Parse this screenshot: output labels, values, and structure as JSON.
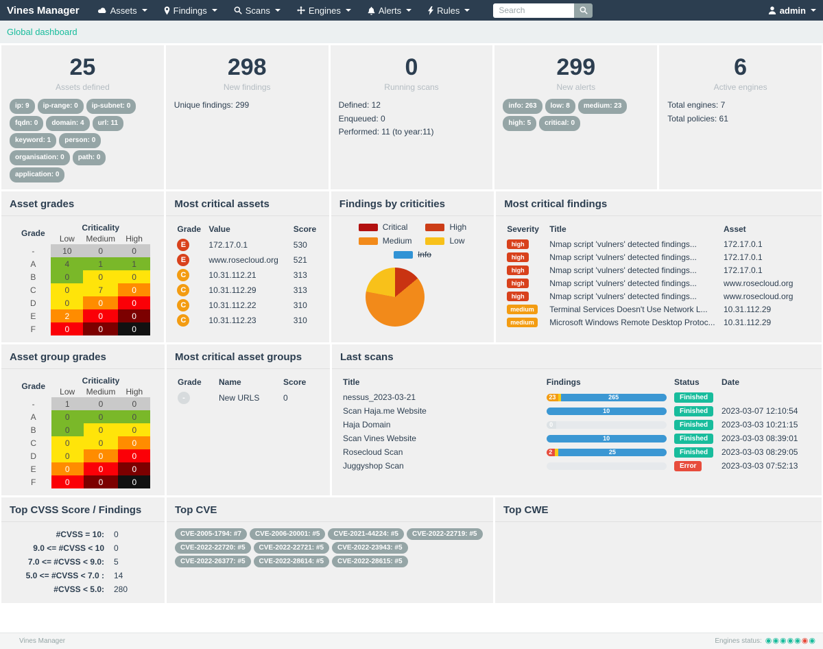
{
  "palette": {
    "navbar_bg": "#2c3e50",
    "teal": "#18bc9c",
    "blue": "#3b97d3",
    "red": "#e74c3c",
    "high": "#d8411c",
    "orange": "#f39c12",
    "yellow": "#f7ca18",
    "gray_badge": "#95a5a6",
    "muted": "#b4bcc2",
    "track": "#dde2e5",
    "light_gray": "#d7dbdd",
    "heat_gray": "#c9c9c9",
    "heat_green": "#7ab829",
    "heat_yellow": "#ffe40a",
    "heat_orange": "#ff8c00",
    "heat_red": "#fb0007",
    "heat_darkred": "#7c0000",
    "heat_black": "#111111",
    "panel_bg": "#f0f0f0",
    "breadcrumb_bg": "#ecf0f1"
  },
  "dark_text_colors": [
    "heat_gray",
    "heat_green",
    "heat_yellow",
    "track"
  ],
  "navbar": {
    "brand": "Vines Manager",
    "menus": [
      {
        "label": "Assets",
        "icon": "cloud-icon"
      },
      {
        "label": "Findings",
        "icon": "map-marker-icon"
      },
      {
        "label": "Scans",
        "icon": "search-icon"
      },
      {
        "label": "Engines",
        "icon": "arrows-icon"
      },
      {
        "label": "Alerts",
        "icon": "bell-icon"
      },
      {
        "label": "Rules",
        "icon": "bolt-icon"
      }
    ],
    "search_placeholder": "Search",
    "user": "admin"
  },
  "breadcrumb": {
    "label": "Global dashboard"
  },
  "stat_cards": [
    {
      "number": "25",
      "label": "Assets defined",
      "badges": [
        "ip: 9",
        "ip-range: 0",
        "ip-subnet: 0",
        "fqdn: 0",
        "domain: 4",
        "url: 11",
        "keyword: 1",
        "person: 0",
        "organisation: 0",
        "path: 0",
        "application: 0"
      ]
    },
    {
      "number": "298",
      "label": "New findings",
      "lines": [
        "Unique findings: 299"
      ]
    },
    {
      "number": "0",
      "label": "Running scans",
      "lines": [
        "Defined: 12",
        "Enqueued: 0",
        "Performed: 11 (to year:11)"
      ]
    },
    {
      "number": "299",
      "label": "New alerts",
      "badges": [
        "info: 263",
        "low: 8",
        "medium: 23",
        "high: 5",
        "critical: 0"
      ]
    },
    {
      "number": "6",
      "label": "Active engines",
      "lines": [
        "Total engines: 7",
        "Total policies: 61"
      ]
    }
  ],
  "panels": {
    "asset_grades": {
      "title": "Asset grades",
      "grade_header": "Grade",
      "crit_header": "Criticality",
      "cols": [
        "Low",
        "Medium",
        "High"
      ],
      "rows": [
        {
          "grade": "-",
          "cells": [
            {
              "v": "10",
              "c": "heat_gray"
            },
            {
              "v": "0",
              "c": "heat_gray"
            },
            {
              "v": "0",
              "c": "heat_gray"
            }
          ]
        },
        {
          "grade": "A",
          "cells": [
            {
              "v": "4",
              "c": "heat_green"
            },
            {
              "v": "1",
              "c": "heat_green"
            },
            {
              "v": "1",
              "c": "heat_green"
            }
          ]
        },
        {
          "grade": "B",
          "cells": [
            {
              "v": "0",
              "c": "heat_green"
            },
            {
              "v": "0",
              "c": "heat_yellow"
            },
            {
              "v": "0",
              "c": "heat_yellow"
            }
          ]
        },
        {
          "grade": "C",
          "cells": [
            {
              "v": "0",
              "c": "heat_yellow"
            },
            {
              "v": "7",
              "c": "heat_yellow"
            },
            {
              "v": "0",
              "c": "heat_orange"
            }
          ]
        },
        {
          "grade": "D",
          "cells": [
            {
              "v": "0",
              "c": "heat_yellow"
            },
            {
              "v": "0",
              "c": "heat_orange"
            },
            {
              "v": "0",
              "c": "heat_red"
            }
          ]
        },
        {
          "grade": "E",
          "cells": [
            {
              "v": "2",
              "c": "heat_orange"
            },
            {
              "v": "0",
              "c": "heat_red"
            },
            {
              "v": "0",
              "c": "heat_darkred"
            }
          ]
        },
        {
          "grade": "F",
          "cells": [
            {
              "v": "0",
              "c": "heat_red"
            },
            {
              "v": "0",
              "c": "heat_darkred"
            },
            {
              "v": "0",
              "c": "heat_black"
            }
          ]
        }
      ]
    },
    "most_critical_assets": {
      "title": "Most critical assets",
      "headers": [
        "Grade",
        "Value",
        "Score"
      ],
      "rows": [
        {
          "grade": "E",
          "color": "high",
          "value": "172.17.0.1",
          "score": "530"
        },
        {
          "grade": "E",
          "color": "high",
          "value": "www.rosecloud.org",
          "score": "521"
        },
        {
          "grade": "C",
          "color": "orange",
          "value": "10.31.112.21",
          "score": "313"
        },
        {
          "grade": "C",
          "color": "orange",
          "value": "10.31.112.29",
          "score": "313"
        },
        {
          "grade": "C",
          "color": "orange",
          "value": "10.31.112.22",
          "score": "310"
        },
        {
          "grade": "C",
          "color": "orange",
          "value": "10.31.112.23",
          "score": "310"
        }
      ]
    },
    "findings_by_criticities": {
      "title": "Findings by criticities"
    },
    "most_critical_findings": {
      "title": "Most critical findings",
      "headers": [
        "Severity",
        "Title",
        "Asset"
      ],
      "rows": [
        {
          "severity": "high",
          "color": "high",
          "title": "Nmap script 'vulners' detected findings...",
          "asset": "172.17.0.1"
        },
        {
          "severity": "high",
          "color": "high",
          "title": "Nmap script 'vulners' detected findings...",
          "asset": "172.17.0.1"
        },
        {
          "severity": "high",
          "color": "high",
          "title": "Nmap script 'vulners' detected findings...",
          "asset": "172.17.0.1"
        },
        {
          "severity": "high",
          "color": "high",
          "title": "Nmap script 'vulners' detected findings...",
          "asset": "www.rosecloud.org"
        },
        {
          "severity": "high",
          "color": "high",
          "title": "Nmap script 'vulners' detected findings...",
          "asset": "www.rosecloud.org"
        },
        {
          "severity": "medium",
          "color": "orange",
          "title": "Terminal Services Doesn't Use Network L...",
          "asset": "10.31.112.29"
        },
        {
          "severity": "medium",
          "color": "orange",
          "title": "Microsoft Windows Remote Desktop Protoc...",
          "asset": "10.31.112.29"
        }
      ]
    },
    "asset_group_grades": {
      "title": "Asset group grades",
      "grade_header": "Grade",
      "crit_header": "Criticality",
      "cols": [
        "Low",
        "Medium",
        "High"
      ],
      "rows": [
        {
          "grade": "-",
          "cells": [
            {
              "v": "1",
              "c": "heat_gray"
            },
            {
              "v": "0",
              "c": "heat_gray"
            },
            {
              "v": "0",
              "c": "heat_gray"
            }
          ]
        },
        {
          "grade": "A",
          "cells": [
            {
              "v": "0",
              "c": "heat_green"
            },
            {
              "v": "0",
              "c": "heat_green"
            },
            {
              "v": "0",
              "c": "heat_green"
            }
          ]
        },
        {
          "grade": "B",
          "cells": [
            {
              "v": "0",
              "c": "heat_green"
            },
            {
              "v": "0",
              "c": "heat_yellow"
            },
            {
              "v": "0",
              "c": "heat_yellow"
            }
          ]
        },
        {
          "grade": "C",
          "cells": [
            {
              "v": "0",
              "c": "heat_yellow"
            },
            {
              "v": "0",
              "c": "heat_yellow"
            },
            {
              "v": "0",
              "c": "heat_orange"
            }
          ]
        },
        {
          "grade": "D",
          "cells": [
            {
              "v": "0",
              "c": "heat_yellow"
            },
            {
              "v": "0",
              "c": "heat_orange"
            },
            {
              "v": "0",
              "c": "heat_red"
            }
          ]
        },
        {
          "grade": "E",
          "cells": [
            {
              "v": "0",
              "c": "heat_orange"
            },
            {
              "v": "0",
              "c": "heat_red"
            },
            {
              "v": "0",
              "c": "heat_darkred"
            }
          ]
        },
        {
          "grade": "F",
          "cells": [
            {
              "v": "0",
              "c": "heat_red"
            },
            {
              "v": "0",
              "c": "heat_darkred"
            },
            {
              "v": "0",
              "c": "heat_black"
            }
          ]
        }
      ]
    },
    "most_critical_asset_groups": {
      "title": "Most critical asset groups",
      "headers": [
        "Grade",
        "Name",
        "Score"
      ],
      "rows": [
        {
          "grade": "-",
          "color": "light_gray",
          "value": "New URLS",
          "score": "0"
        }
      ]
    },
    "last_scans": {
      "title": "Last scans",
      "headers": [
        "Title",
        "Findings",
        "Status",
        "Date"
      ],
      "rows": [
        {
          "title": "nessus_2023-03-21",
          "bars": [
            {
              "label": "23",
              "c": "orange",
              "w": 10
            },
            {
              "c": "yellow",
              "w": 2
            },
            {
              "label": "265",
              "c": "blue",
              "w": 88
            }
          ],
          "status": "Finished",
          "status_color": "teal",
          "date": ""
        },
        {
          "title": "Scan Haja.me Website",
          "bars": [
            {
              "label": "10",
              "c": "blue",
              "w": 100
            }
          ],
          "status": "Finished",
          "status_color": "teal",
          "date": "2023-03-07 12:10:54"
        },
        {
          "title": "Haja Domain",
          "bars": [
            {
              "label": "0",
              "c": "track",
              "w": 8
            }
          ],
          "status": "Finished",
          "status_color": "teal",
          "date": "2023-03-03 10:21:15"
        },
        {
          "title": "Scan Vines Website",
          "bars": [
            {
              "label": "10",
              "c": "blue",
              "w": 100
            }
          ],
          "status": "Finished",
          "status_color": "teal",
          "date": "2023-03-03 08:39:01"
        },
        {
          "title": "Rosecloud Scan",
          "bars": [
            {
              "label": "2",
              "c": "red",
              "w": 7
            },
            {
              "c": "yellow",
              "w": 3
            },
            {
              "label": "25",
              "c": "blue",
              "w": 90
            }
          ],
          "status": "Finished",
          "status_color": "teal",
          "date": "2023-03-03 08:29:05"
        },
        {
          "title": "Juggyshop Scan",
          "bars": [],
          "status": "Error",
          "status_color": "red",
          "date": "2023-03-03 07:52:13"
        }
      ]
    },
    "top_cvss": {
      "title": "Top CVSS Score / Findings",
      "rows": [
        {
          "label": "#CVSS = 10:",
          "value": "0"
        },
        {
          "label": "9.0 <= #CVSS < 10",
          "value": "0"
        },
        {
          "label": "7.0 <= #CVSS < 9.0:",
          "value": "5"
        },
        {
          "label": "5.0 <= #CVSS < 7.0 :",
          "value": "14"
        },
        {
          "label": "#CVSS < 5.0:",
          "value": "280"
        }
      ]
    },
    "top_cve": {
      "title": "Top CVE",
      "badges": [
        "CVE-2005-1794: #7",
        "CVE-2006-20001: #5",
        "CVE-2021-44224: #5",
        "CVE-2022-22719: #5",
        "CVE-2022-22720: #5",
        "CVE-2022-22721: #5",
        "CVE-2022-23943: #5",
        "CVE-2022-26377: #5",
        "CVE-2022-28614: #5",
        "CVE-2022-28615: #5"
      ]
    },
    "top_cwe": {
      "title": "Top CWE"
    }
  },
  "chart_data": {
    "type": "pie",
    "title": "Findings by criticities",
    "slices": [
      {
        "label": "High",
        "pct": 14,
        "color": "#c93312"
      },
      {
        "label": "Medium",
        "pct": 64,
        "color": "#f28a1a"
      },
      {
        "label": "Low",
        "pct": 22,
        "color": "#f8c11a"
      }
    ],
    "legend": [
      {
        "label": "Critical",
        "color": "#b2100f",
        "disabled": false
      },
      {
        "label": "High",
        "color": "#cc3d17",
        "disabled": false
      },
      {
        "label": "Medium",
        "color": "#f28a1a",
        "disabled": false
      },
      {
        "label": "Low",
        "color": "#f8c11a",
        "disabled": false
      },
      {
        "label": "Info",
        "color": "#3193d5",
        "disabled": true
      }
    ],
    "legend_position": "top",
    "labels_shown": false
  },
  "footer": {
    "brand": "Vines Manager",
    "engines_status_label": "Engines status:",
    "engine_dots": [
      "teal",
      "teal",
      "teal",
      "teal",
      "teal",
      "red",
      "teal"
    ]
  }
}
